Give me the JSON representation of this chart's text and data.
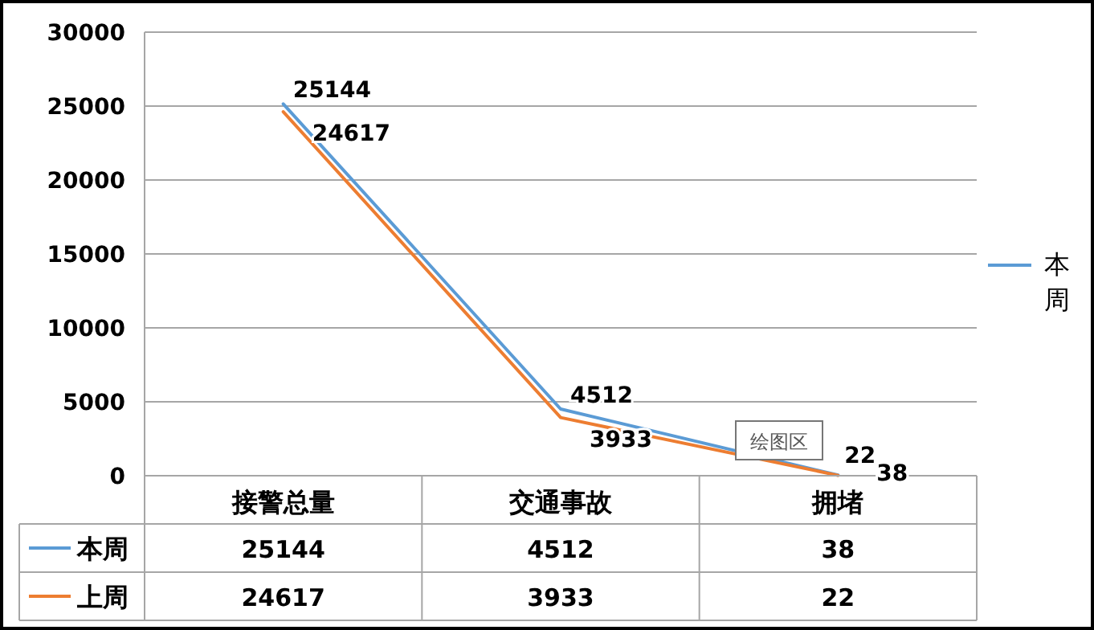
{
  "chart_data": {
    "type": "line",
    "categories": [
      "接警总量",
      "交通事故",
      "拥堵"
    ],
    "series": [
      {
        "name": "本周",
        "color": "#5b9bd5",
        "values": [
          25144,
          4512,
          38
        ]
      },
      {
        "name": "上周",
        "color": "#ed7d31",
        "values": [
          24617,
          3933,
          22
        ]
      }
    ],
    "ylim": [
      0,
      30000
    ],
    "yticks": [
      0,
      5000,
      10000,
      15000,
      20000,
      25000,
      30000
    ],
    "grid": "y",
    "legend": "bottom left",
    "data_labels": true,
    "marker": "none",
    "line_style": "solid",
    "annotations": [
      {
        "text": "25144",
        "x": "接警总量",
        "y": 25144
      },
      {
        "text": "24617",
        "x": "接警总量",
        "y": 24617
      },
      {
        "text": "4512",
        "x": "交通事故",
        "y": 4512
      },
      {
        "text": "3933",
        "x": "交通事故",
        "y": 3933
      },
      {
        "text": "38",
        "x": "拥堵",
        "y": 38
      },
      {
        "text": "22",
        "x": "拥堵",
        "y": 22
      },
      "本周",
      "绘图区"
    ]
  }
}
